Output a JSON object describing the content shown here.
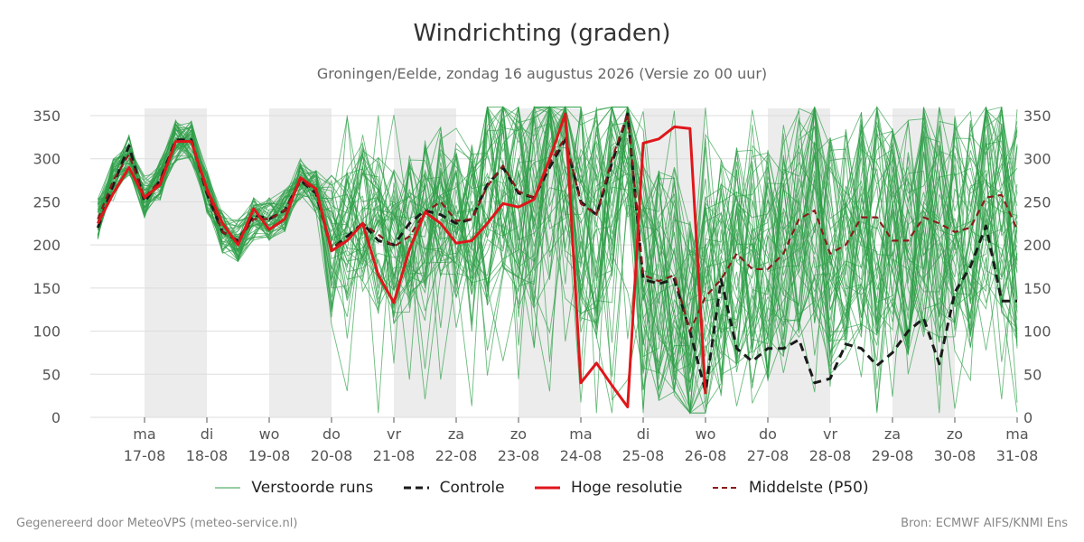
{
  "title": "Windrichting (graden)",
  "subtitle": "Groningen/Eelde, zondag 16 augustus 2026 (Versie zo 00 uur)",
  "footer_left": "Gegenereerd door MeteoVPS (meteo-service.nl)",
  "footer_right": "Bron: ECMWF AIFS/KNMI Ens",
  "colors": {
    "ensemble": "#2e9e47",
    "control": "#1a1a1a",
    "hires": "#e0161b",
    "median": "#8b1a1a",
    "weekend_shade": "#ececec",
    "grid": "#dddddd"
  },
  "legend": [
    {
      "label": "Verstoorde runs",
      "style": "ensemble"
    },
    {
      "label": "Controle",
      "style": "control"
    },
    {
      "label": "Hoge resolutie",
      "style": "hires"
    },
    {
      "label": "Middelste (P50)",
      "style": "median"
    }
  ],
  "chart_data": {
    "type": "line",
    "title": "Windrichting (graden)",
    "subtitle": "Groningen/Eelde, zondag 16 augustus 2026 (Versie zo 00 uur)",
    "x_unit": "date (0 = zo 16-08 00 uur, step 0.25 = 6 uur)",
    "ylim": [
      0,
      360
    ],
    "yticks": [
      0,
      50,
      100,
      150,
      200,
      250,
      300,
      350
    ],
    "grid": true,
    "legend_position": "bottom",
    "xticks": [
      {
        "day": "ma",
        "date": "17-08"
      },
      {
        "day": "di",
        "date": "18-08"
      },
      {
        "day": "wo",
        "date": "19-08"
      },
      {
        "day": "do",
        "date": "20-08"
      },
      {
        "day": "vr",
        "date": "21-08"
      },
      {
        "day": "za",
        "date": "22-08"
      },
      {
        "day": "zo",
        "date": "23-08"
      },
      {
        "day": "ma",
        "date": "24-08"
      },
      {
        "day": "di",
        "date": "25-08"
      },
      {
        "day": "wo",
        "date": "26-08"
      },
      {
        "day": "do",
        "date": "27-08"
      },
      {
        "day": "vr",
        "date": "28-08"
      },
      {
        "day": "za",
        "date": "29-08"
      },
      {
        "day": "zo",
        "date": "30-08"
      },
      {
        "day": "ma",
        "date": "31-08"
      }
    ],
    "weekend_bands": [
      [
        1,
        2
      ],
      [
        3,
        4
      ],
      [
        5,
        6
      ],
      [
        7,
        8
      ],
      [
        9,
        10
      ],
      [
        11,
        12
      ],
      [
        13,
        14
      ]
    ],
    "series": [
      {
        "name": "Hoge resolutie",
        "style": "hires",
        "x": [
          0.25,
          0.5,
          0.75,
          1.0,
          1.25,
          1.5,
          1.75,
          2.0,
          2.25,
          2.5,
          2.75,
          3.0,
          3.25,
          3.5,
          3.75,
          4.0,
          4.25,
          4.5,
          4.75,
          5.0,
          5.25,
          5.5,
          5.75,
          6.0,
          6.25,
          6.5,
          6.75,
          7.0,
          7.25,
          7.5,
          7.75,
          8.0,
          8.25,
          8.5,
          8.75,
          9.0,
          9.25,
          9.5,
          9.75,
          10.0
        ],
        "values": [
          225,
          260,
          290,
          255,
          270,
          320,
          320,
          265,
          225,
          200,
          242,
          218,
          230,
          278,
          265,
          193,
          205,
          225,
          165,
          133,
          195,
          238,
          225,
          202,
          205,
          225,
          248,
          244,
          253,
          300,
          352,
          40,
          63,
          37,
          12,
          318,
          323,
          337,
          335,
          27
        ]
      },
      {
        "name": "Controle",
        "style": "control",
        "x": [
          0.25,
          0.5,
          0.75,
          1.0,
          1.25,
          1.5,
          1.75,
          2.0,
          2.25,
          2.5,
          2.75,
          3.0,
          3.25,
          3.5,
          3.75,
          4.0,
          4.25,
          4.5,
          4.75,
          5.0,
          5.25,
          5.5,
          5.75,
          6.0,
          6.25,
          6.5,
          6.75,
          7.0,
          7.25,
          7.5,
          7.75,
          8.0,
          8.25,
          8.5,
          8.75,
          9.0,
          9.25,
          9.5,
          9.75,
          10.0,
          10.25,
          10.5,
          10.75,
          11.0,
          11.25,
          11.5,
          11.75,
          12.0,
          12.25,
          12.5,
          12.75,
          13.0,
          13.25,
          13.5,
          13.75,
          14.0,
          14.25,
          14.5,
          14.75,
          15.0
        ],
        "values": [
          220,
          270,
          315,
          250,
          275,
          322,
          322,
          260,
          215,
          205,
          235,
          230,
          240,
          275,
          260,
          195,
          210,
          225,
          205,
          200,
          225,
          240,
          235,
          225,
          230,
          270,
          290,
          260,
          255,
          290,
          322,
          250,
          235,
          295,
          352,
          160,
          155,
          160,
          100,
          30,
          160,
          80,
          65,
          80,
          80,
          90,
          40,
          45,
          85,
          80,
          60,
          75,
          100,
          115,
          62,
          145,
          175,
          222,
          135,
          135
        ]
      },
      {
        "name": "Middelste (P50)",
        "style": "median",
        "x": [
          0.25,
          0.5,
          0.75,
          1.0,
          1.25,
          1.5,
          1.75,
          2.0,
          2.25,
          2.5,
          2.75,
          3.0,
          3.25,
          3.5,
          3.75,
          4.0,
          4.25,
          4.5,
          4.75,
          5.0,
          5.25,
          5.5,
          5.75,
          6.0,
          6.25,
          6.5,
          6.75,
          7.0,
          7.25,
          7.5,
          7.75,
          8.0,
          8.25,
          8.5,
          8.75,
          9.0,
          9.25,
          9.5,
          9.75,
          10.0,
          10.25,
          10.5,
          10.75,
          11.0,
          11.25,
          11.5,
          11.75,
          12.0,
          12.25,
          12.5,
          12.75,
          13.0,
          13.25,
          13.5,
          13.75,
          14.0,
          14.25,
          14.5,
          14.75,
          15.0
        ],
        "values": [
          230,
          275,
          305,
          255,
          275,
          320,
          320,
          262,
          215,
          205,
          230,
          230,
          240,
          275,
          262,
          198,
          205,
          225,
          212,
          198,
          210,
          238,
          250,
          228,
          230,
          268,
          292,
          262,
          255,
          295,
          325,
          248,
          235,
          300,
          352,
          165,
          158,
          165,
          100,
          140,
          160,
          190,
          172,
          172,
          190,
          230,
          240,
          190,
          200,
          232,
          232,
          205,
          205,
          232,
          225,
          215,
          220,
          255,
          258,
          218
        ]
      }
    ],
    "ensemble_members": {
      "name": "Verstoorde runs",
      "count": 50,
      "range_description": "spread across 0-360"
    }
  }
}
